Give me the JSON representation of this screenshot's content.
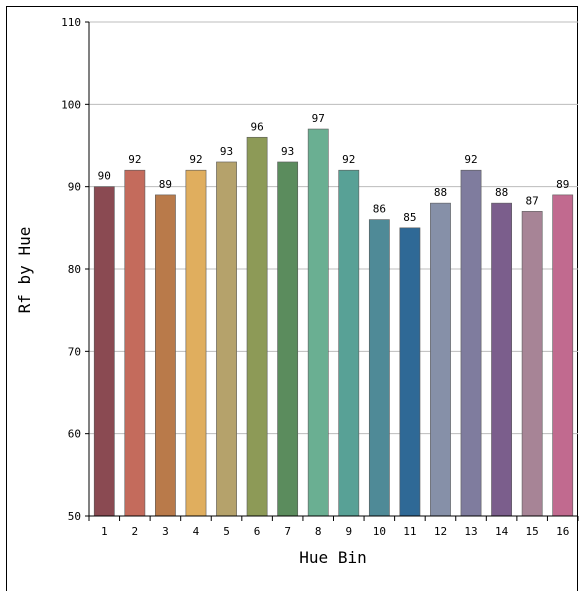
{
  "chart_data": {
    "type": "bar",
    "title": "",
    "xlabel": "Hue Bin",
    "ylabel": "Rf by Hue",
    "ylim": [
      50,
      110
    ],
    "yticks": [
      50,
      60,
      70,
      80,
      90,
      100,
      110
    ],
    "grid": true,
    "categories": [
      "1",
      "2",
      "3",
      "4",
      "5",
      "6",
      "7",
      "8",
      "9",
      "10",
      "11",
      "12",
      "13",
      "14",
      "15",
      "16"
    ],
    "values": [
      90,
      92,
      89,
      92,
      93,
      96,
      93,
      97,
      92,
      86,
      85,
      88,
      92,
      88,
      87,
      89
    ],
    "colors": [
      "#8a4a52",
      "#c46b5c",
      "#b97a4a",
      "#e0ae5e",
      "#b5a26b",
      "#8d9a57",
      "#5b8c5d",
      "#6aaf92",
      "#58a196",
      "#4f8a97",
      "#2f6996",
      "#8690a8",
      "#7f7c9e",
      "#7b5e8c",
      "#a78496",
      "#c16a8f"
    ]
  }
}
